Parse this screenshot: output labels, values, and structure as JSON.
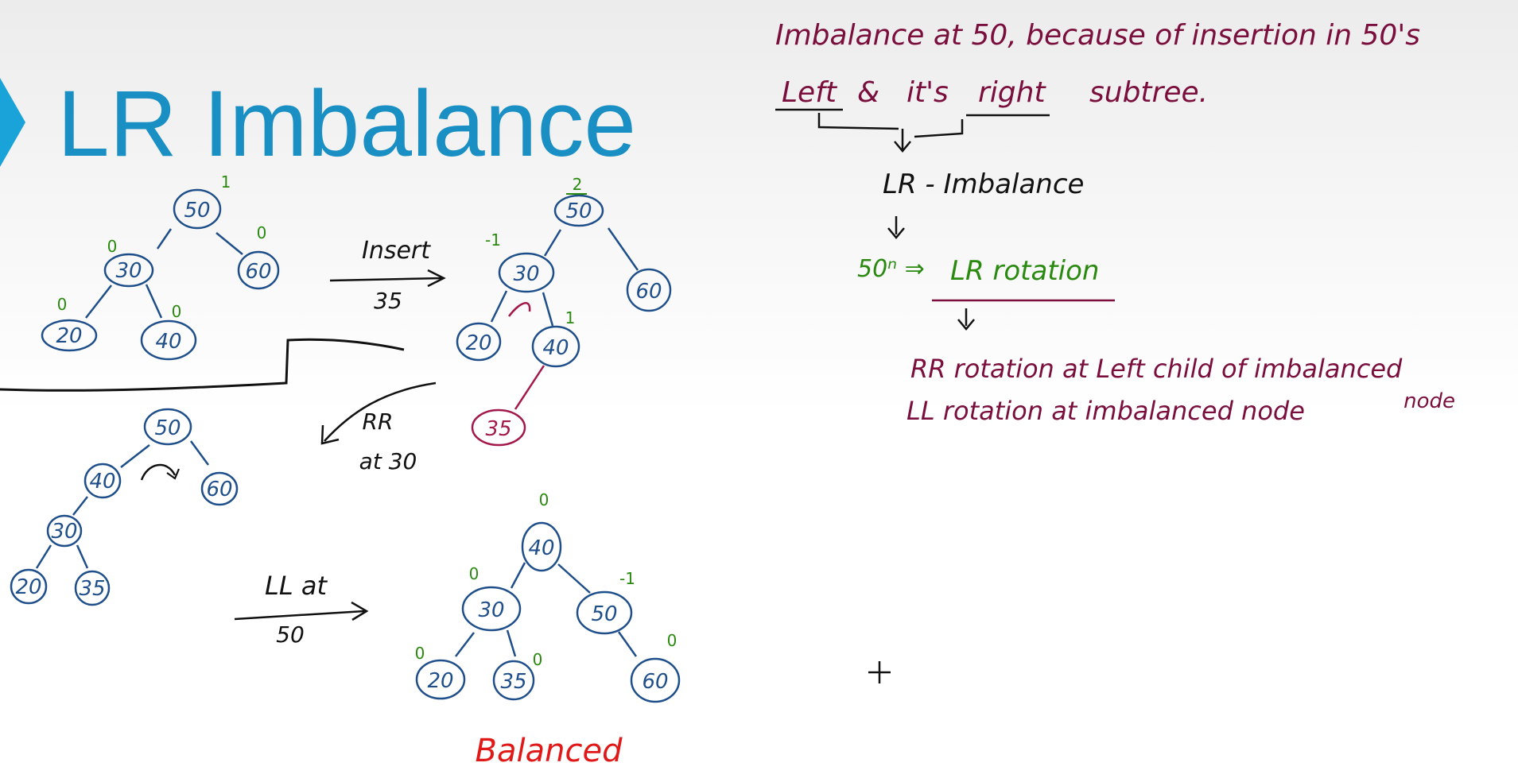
{
  "slide": {
    "title": "LR Imbalance"
  },
  "notes": {
    "line1": "Imbalance at 50, because of insertion in 50's",
    "line2_a": "Left",
    "line2_b": "&",
    "line2_c": "it's",
    "line2_d": "right",
    "line2_e": "subtree.",
    "imbalance_type": "LR - Imbalance",
    "solution_prefix": "50ⁿ ⇒",
    "solution": "LR rotation",
    "step1": "RR rotation at Left child of imbalanced",
    "step1_tail": "node",
    "step2": "LL rotation at imbalanced node"
  },
  "arrows": {
    "insert_top": "Insert",
    "insert_bottom": "35",
    "rr_top": "RR",
    "rr_bottom": "at 30",
    "ll_top": "LL at",
    "ll_bottom": "50"
  },
  "result_label": "Balanced",
  "trees": {
    "tree1": {
      "nodes": [
        {
          "id": "t1-50",
          "label": "50",
          "bf": "1"
        },
        {
          "id": "t1-30",
          "label": "30",
          "bf": "0"
        },
        {
          "id": "t1-60",
          "label": "60",
          "bf": "0"
        },
        {
          "id": "t1-20",
          "label": "20",
          "bf": "0"
        },
        {
          "id": "t1-40",
          "label": "40",
          "bf": "0"
        }
      ]
    },
    "tree2": {
      "nodes": [
        {
          "id": "t2-50",
          "label": "50",
          "bf": "2"
        },
        {
          "id": "t2-30",
          "label": "30",
          "bf": "-1"
        },
        {
          "id": "t2-60",
          "label": "60",
          "bf": ""
        },
        {
          "id": "t2-20",
          "label": "20",
          "bf": ""
        },
        {
          "id": "t2-40",
          "label": "40",
          "bf": "1"
        },
        {
          "id": "t2-35",
          "label": "35",
          "bf": ""
        }
      ]
    },
    "tree3": {
      "nodes": [
        {
          "id": "t3-50",
          "label": "50",
          "bf": ""
        },
        {
          "id": "t3-40",
          "label": "40",
          "bf": ""
        },
        {
          "id": "t3-60",
          "label": "60",
          "bf": ""
        },
        {
          "id": "t3-30",
          "label": "30",
          "bf": ""
        },
        {
          "id": "t3-20",
          "label": "20",
          "bf": ""
        },
        {
          "id": "t3-35",
          "label": "35",
          "bf": ""
        }
      ]
    },
    "tree4": {
      "nodes": [
        {
          "id": "t4-40",
          "label": "40",
          "bf": "0"
        },
        {
          "id": "t4-30",
          "label": "30",
          "bf": "0"
        },
        {
          "id": "t4-50",
          "label": "50",
          "bf": "-1"
        },
        {
          "id": "t4-20",
          "label": "20",
          "bf": "0"
        },
        {
          "id": "t4-35",
          "label": "35",
          "bf": "0"
        },
        {
          "id": "t4-60",
          "label": "60",
          "bf": "0"
        }
      ]
    }
  },
  "colors": {
    "title": "#1a8fc4",
    "node": "#1f4f8a",
    "new_node": "#a3184a",
    "balance_factor": "#2a8a10",
    "note": "#7a0f3d",
    "balanced": "#e01818"
  }
}
